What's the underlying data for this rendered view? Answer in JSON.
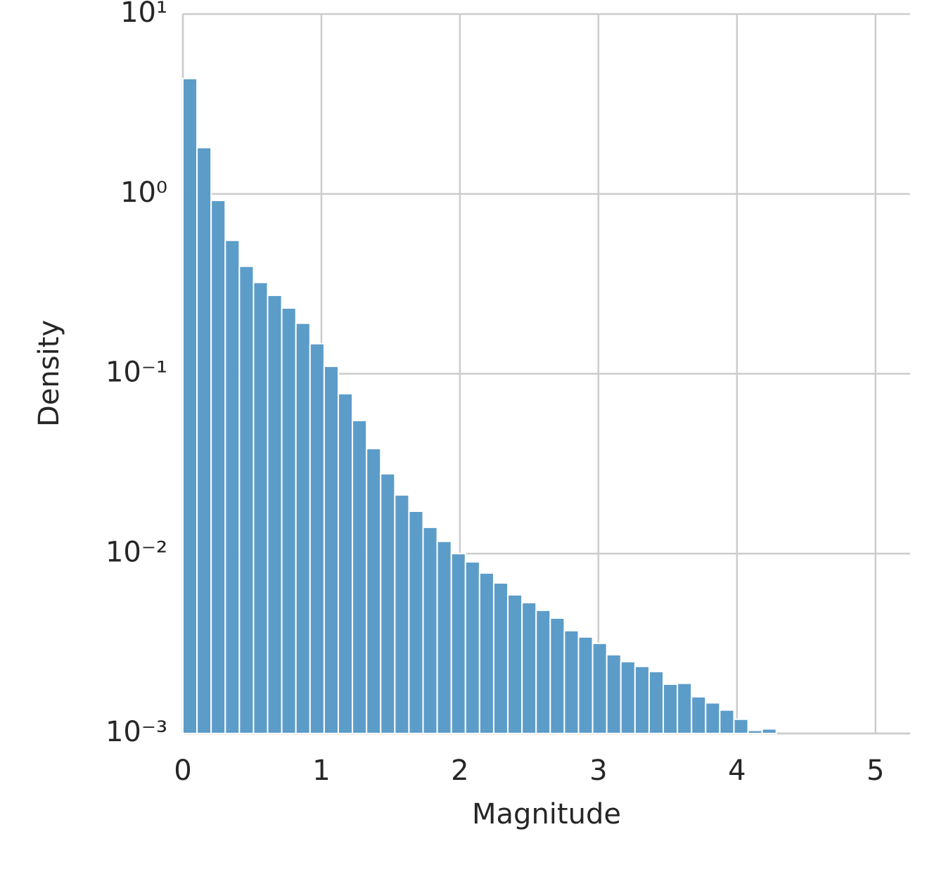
{
  "chart_data": {
    "type": "histogram",
    "x_label": "Magnitude",
    "y_label": "Density",
    "bins": [
      0,
      0.102,
      0.204,
      0.306,
      0.408,
      0.51,
      0.612,
      0.714,
      0.816,
      0.918,
      1.02,
      1.122,
      1.224,
      1.326,
      1.428,
      1.53,
      1.632,
      1.734,
      1.836,
      1.938,
      2.04,
      2.142,
      2.244,
      2.346,
      2.448,
      2.55,
      2.652,
      2.754,
      2.856,
      2.958,
      3.06,
      3.162,
      3.264,
      3.366,
      3.468,
      3.57,
      3.672,
      3.774,
      3.876,
      3.978,
      4.08,
      4.182,
      4.284
    ],
    "values": [
      4.38,
      1.81,
      0.92,
      0.552,
      0.396,
      0.322,
      0.273,
      0.232,
      0.191,
      0.147,
      0.11,
      0.0775,
      0.055,
      0.0384,
      0.0278,
      0.0212,
      0.0172,
      0.014,
      0.0117,
      0.01,
      0.009,
      0.0078,
      0.00687,
      0.0059,
      0.00534,
      0.00484,
      0.00438,
      0.00373,
      0.00344,
      0.00317,
      0.00274,
      0.00251,
      0.00236,
      0.00221,
      0.00188,
      0.0019,
      0.0016,
      0.00148,
      0.00135,
      0.0012,
      0.00104,
      0.00106
    ],
    "color": "#5799c7",
    "xlim": [
      0,
      5.25
    ],
    "xticks": [
      0,
      1,
      2,
      3,
      4,
      5
    ],
    "ylim": [
      0.001,
      10
    ],
    "y_scale": "log",
    "yticks": [
      {
        "value": 0.001,
        "label": "10⁻³"
      },
      {
        "value": 0.01,
        "label": "10⁻²"
      },
      {
        "value": 0.1,
        "label": "10⁻¹"
      },
      {
        "value": 1,
        "label": "10⁰"
      },
      {
        "value": 10,
        "label": "10¹"
      }
    ],
    "grid": true
  }
}
